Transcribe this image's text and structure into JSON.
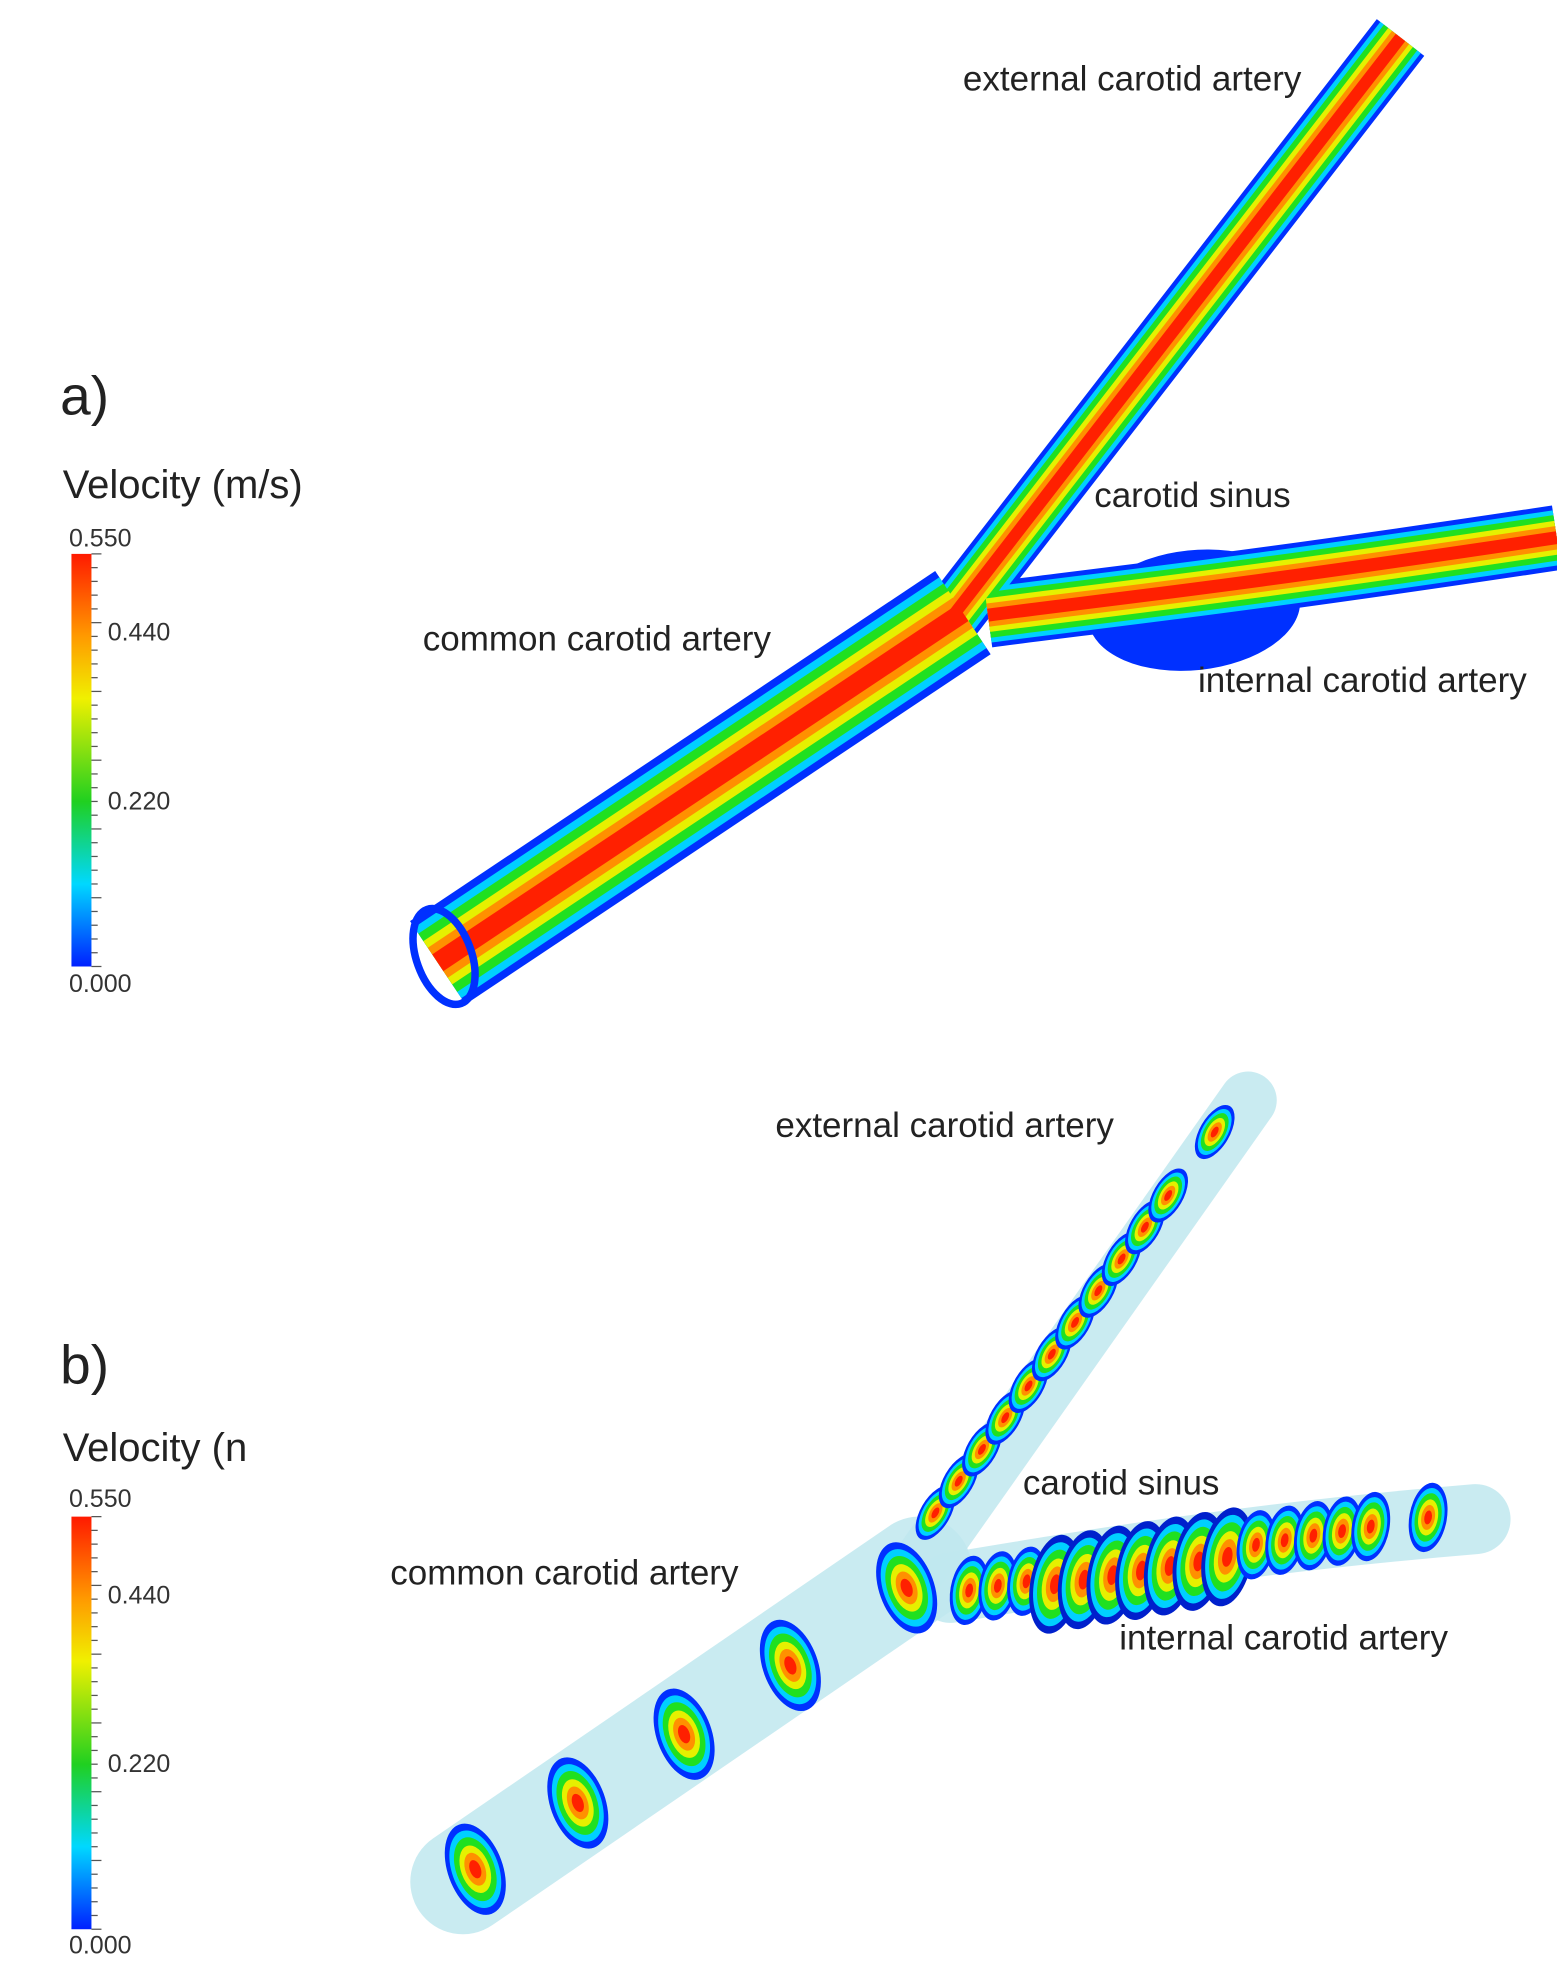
{
  "panels": [
    {
      "label": "a)",
      "colorbar": {
        "title": "Velocity (m/s)",
        "ticks": [
          "0.550",
          "0.440",
          "0.220",
          "0.000"
        ]
      },
      "annotations": [
        "external carotid artery",
        "carotid sinus",
        "common carotid artery",
        "internal carotid artery"
      ]
    },
    {
      "label": "b)",
      "colorbar": {
        "title": "Velocity (n",
        "ticks": [
          "0.550",
          "0.440",
          "0.220",
          "0.000"
        ]
      },
      "annotations": [
        "external carotid artery",
        "carotid sinus",
        "common carotid artery",
        "internal carotid artery"
      ]
    }
  ]
}
